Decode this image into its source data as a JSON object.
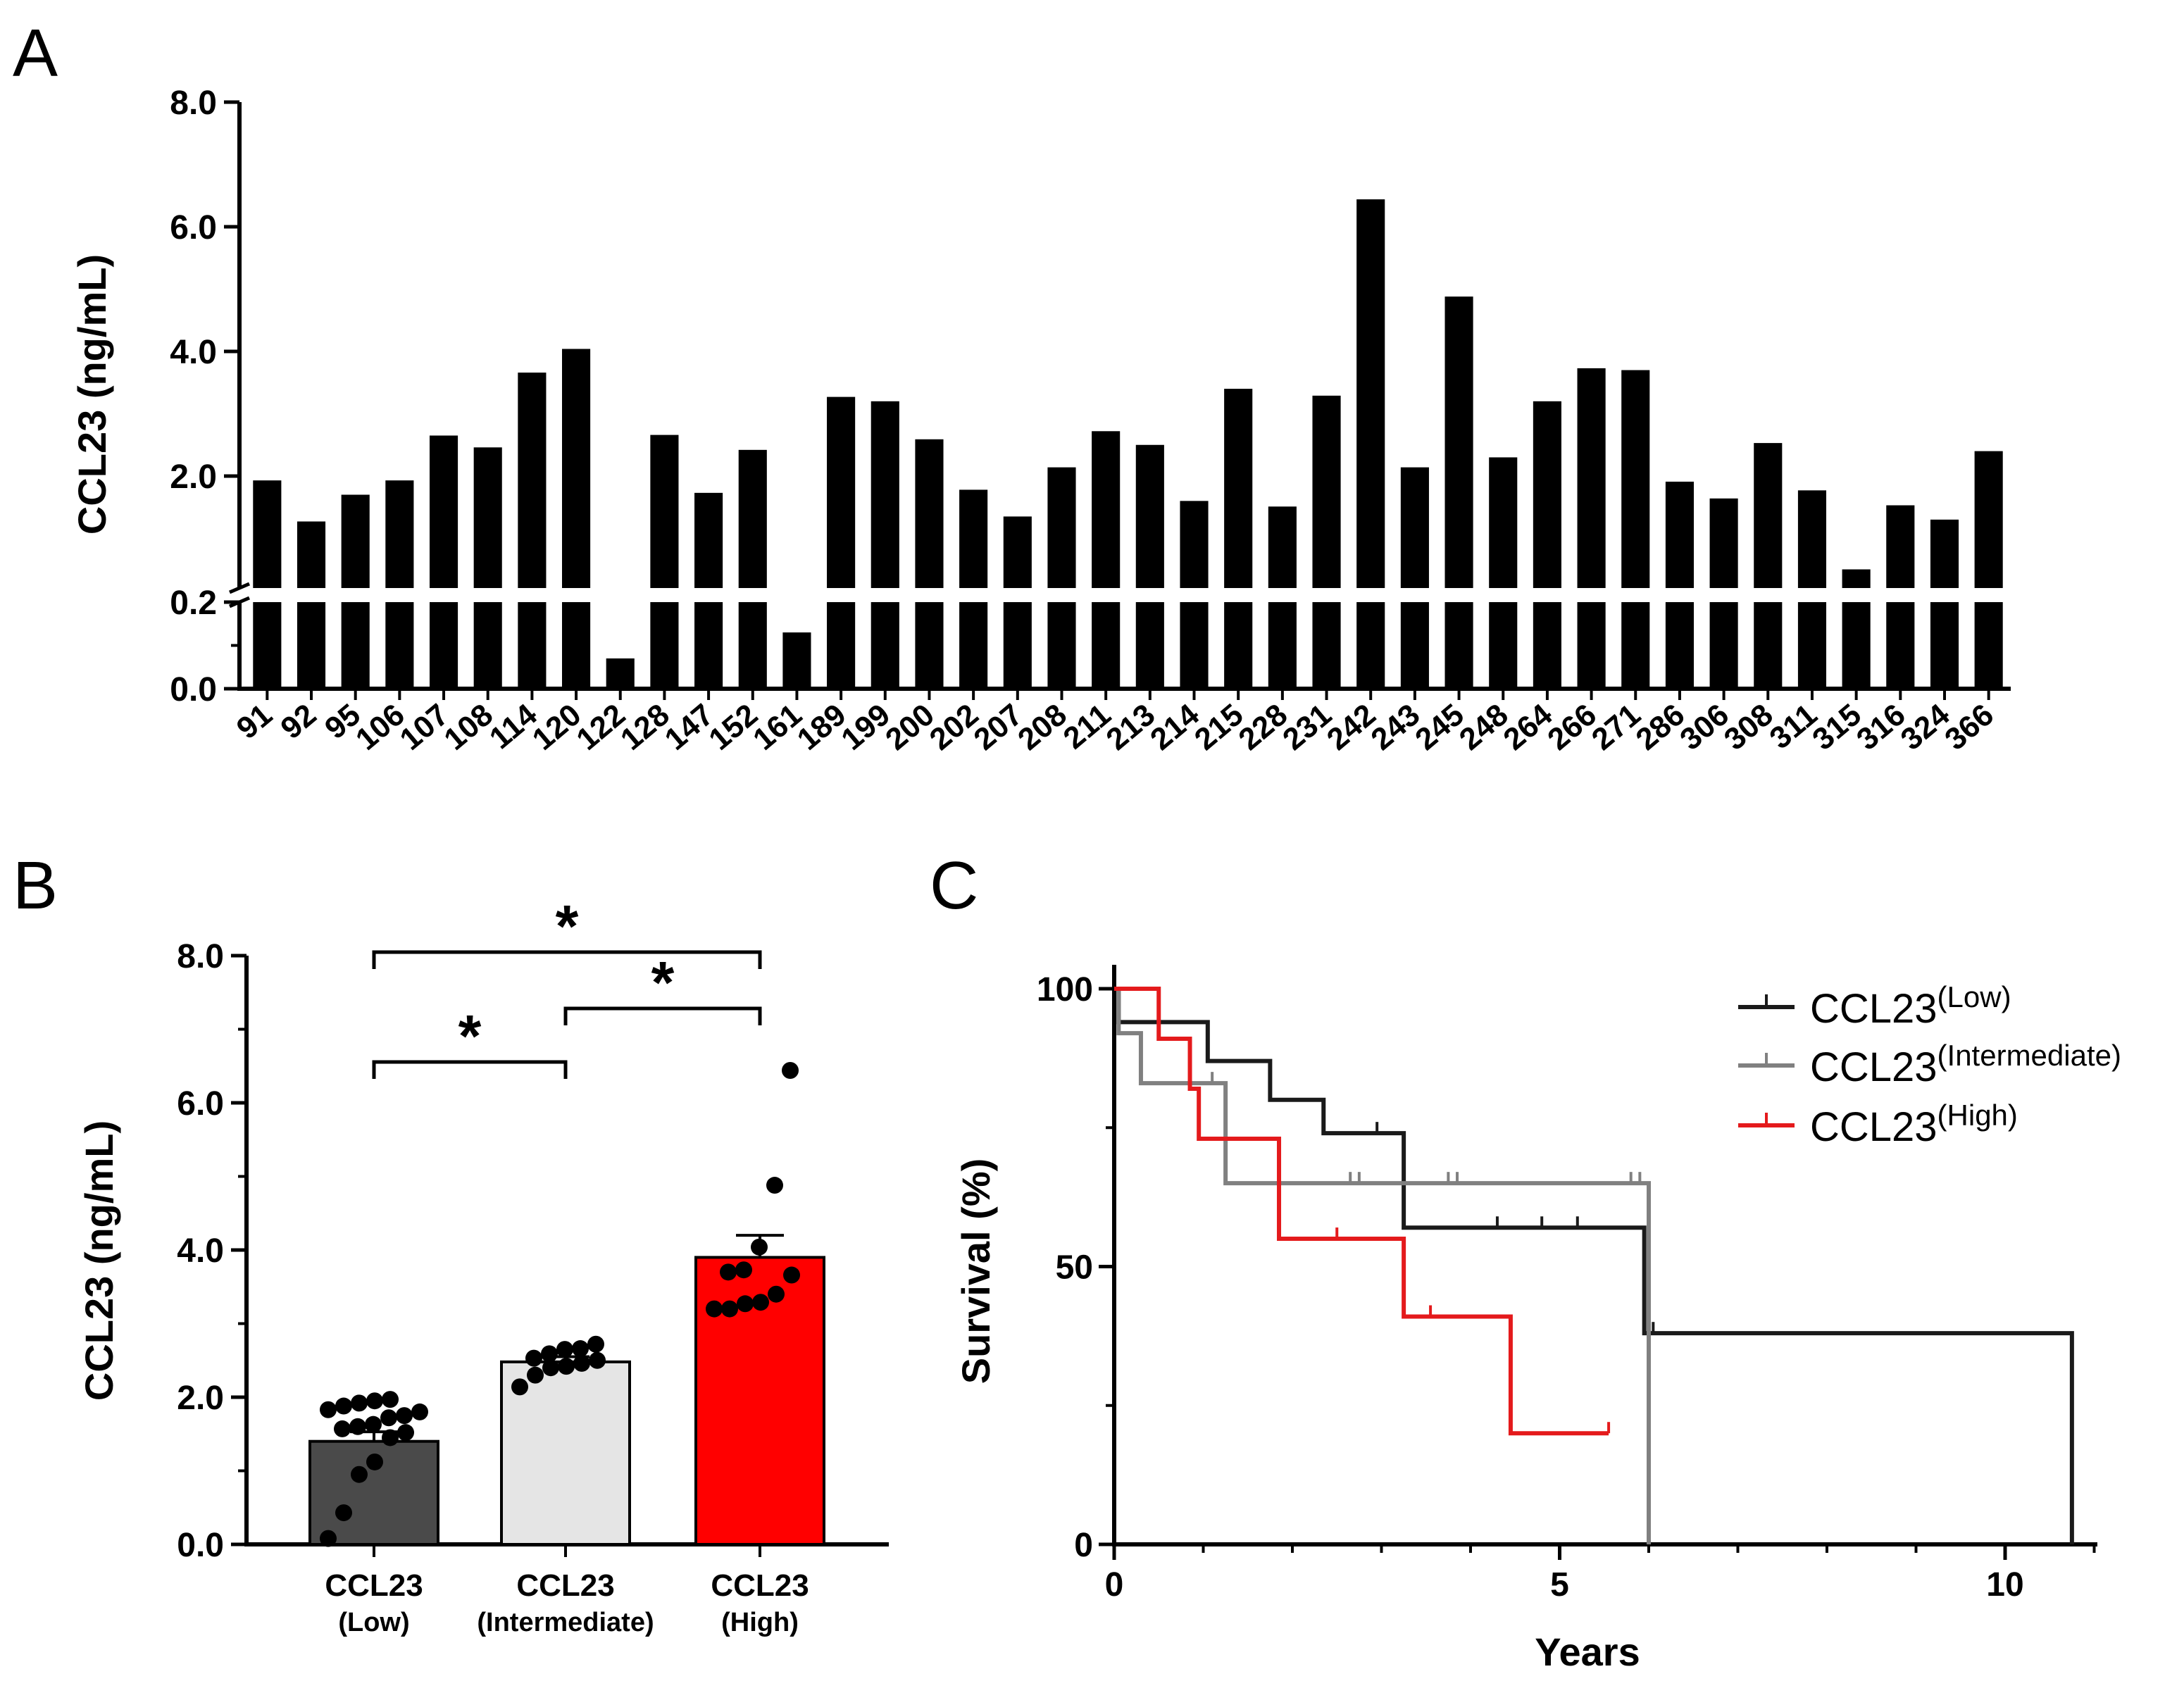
{
  "chart_data": [
    {
      "panel": "A",
      "type": "bar",
      "ylabel": "CCL23 (ng/mL)",
      "xlabel": "",
      "y_axis_break": {
        "lower": [
          0.0,
          0.2
        ],
        "upper": [
          0.2,
          8.0
        ]
      },
      "yticks": [
        "0.0",
        "0.2",
        "2.0",
        "4.0",
        "6.0",
        "8.0"
      ],
      "categories": [
        "91",
        "92",
        "95",
        "106",
        "107",
        "108",
        "114",
        "120",
        "122",
        "128",
        "147",
        "152",
        "161",
        "189",
        "199",
        "200",
        "202",
        "207",
        "208",
        "211",
        "213",
        "214",
        "215",
        "228",
        "231",
        "242",
        "243",
        "245",
        "248",
        "264",
        "266",
        "271",
        "286",
        "306",
        "308",
        "311",
        "315",
        "316",
        "324",
        "366"
      ],
      "values": [
        1.93,
        1.27,
        1.7,
        1.93,
        2.65,
        2.46,
        3.66,
        4.04,
        0.07,
        2.66,
        1.73,
        2.42,
        0.13,
        3.27,
        3.2,
        2.59,
        1.78,
        1.35,
        2.14,
        2.72,
        2.5,
        1.6,
        3.4,
        1.51,
        3.29,
        6.44,
        2.14,
        4.88,
        2.3,
        3.2,
        3.73,
        3.7,
        1.91,
        1.64,
        2.53,
        1.77,
        0.5,
        1.53,
        1.3,
        2.4
      ],
      "color": "#000000"
    },
    {
      "panel": "B",
      "type": "bar",
      "ylabel": "CCL23 (ng/mL)",
      "xlabel": "",
      "ylim": [
        0,
        8
      ],
      "yticks": [
        "0.0",
        "2.0",
        "4.0",
        "6.0",
        "8.0"
      ],
      "categories": [
        {
          "name": "CCL23",
          "sub": "(Low)",
          "mean": 1.4,
          "sem": 0.13,
          "color": "#4a4a4a",
          "points": [
            0.08,
            0.43,
            0.95,
            1.12,
            1.45,
            1.52,
            1.57,
            1.6,
            1.63,
            1.72,
            1.75,
            1.8,
            1.83,
            1.88,
            1.92,
            1.95,
            1.97
          ]
        },
        {
          "name": "CCL23",
          "sub": "(Intermediate)",
          "mean": 2.48,
          "sem": 0.07,
          "color": "#e5e5e5",
          "points": [
            2.14,
            2.3,
            2.4,
            2.42,
            2.46,
            2.5,
            2.53,
            2.59,
            2.65,
            2.66,
            2.72
          ]
        },
        {
          "name": "CCL23",
          "sub": "(High)",
          "mean": 3.9,
          "sem": 0.3,
          "color": "#ff0000",
          "points": [
            3.2,
            3.2,
            3.27,
            3.29,
            3.4,
            3.66,
            3.7,
            3.73,
            4.04,
            4.88,
            6.44
          ]
        }
      ],
      "significance": [
        {
          "from": 0,
          "to": 2,
          "label": "*"
        },
        {
          "from": 1,
          "to": 2,
          "label": "*"
        },
        {
          "from": 0,
          "to": 1,
          "label": "*"
        }
      ]
    },
    {
      "panel": "C",
      "type": "line",
      "subtype": "kaplan-meier",
      "xlabel": "Years",
      "ylabel": "Survival (%)",
      "xlim": [
        0,
        11
      ],
      "ylim": [
        0,
        100
      ],
      "xticks": [
        "0",
        "5",
        "10"
      ],
      "yticks": [
        "0",
        "50",
        "100"
      ],
      "series": [
        {
          "name": "CCL23",
          "sup": "(Low)",
          "color": "#1a1a1a",
          "steps": [
            [
              0,
              100
            ],
            [
              0.05,
              94
            ],
            [
              1.05,
              87
            ],
            [
              1.75,
              80
            ],
            [
              2.35,
              74
            ],
            [
              3.25,
              57
            ],
            [
              5.95,
              38
            ],
            [
              10.75,
              0
            ]
          ],
          "censor_x": [
            2.95,
            4.3,
            4.8,
            5.2,
            6.05
          ]
        },
        {
          "name": "CCL23",
          "sup": "(Intermediate)",
          "color": "#808080",
          "steps": [
            [
              0,
              100
            ],
            [
              0.05,
              92
            ],
            [
              0.3,
              83
            ],
            [
              1.25,
              65
            ],
            [
              6.0,
              0
            ]
          ],
          "censor_x": [
            1.1,
            2.65,
            2.75,
            3.75,
            3.85,
            5.8,
            5.9
          ]
        },
        {
          "name": "CCL23",
          "sup": "(High)",
          "color": "#e41a1c",
          "steps": [
            [
              0,
              100
            ],
            [
              0.5,
              91
            ],
            [
              0.85,
              82
            ],
            [
              0.95,
              73
            ],
            [
              1.85,
              55
            ],
            [
              3.25,
              41
            ],
            [
              4.45,
              20
            ],
            [
              5.55,
              20
            ]
          ],
          "censor_x": [
            2.5,
            3.55,
            5.55
          ]
        }
      ]
    }
  ]
}
